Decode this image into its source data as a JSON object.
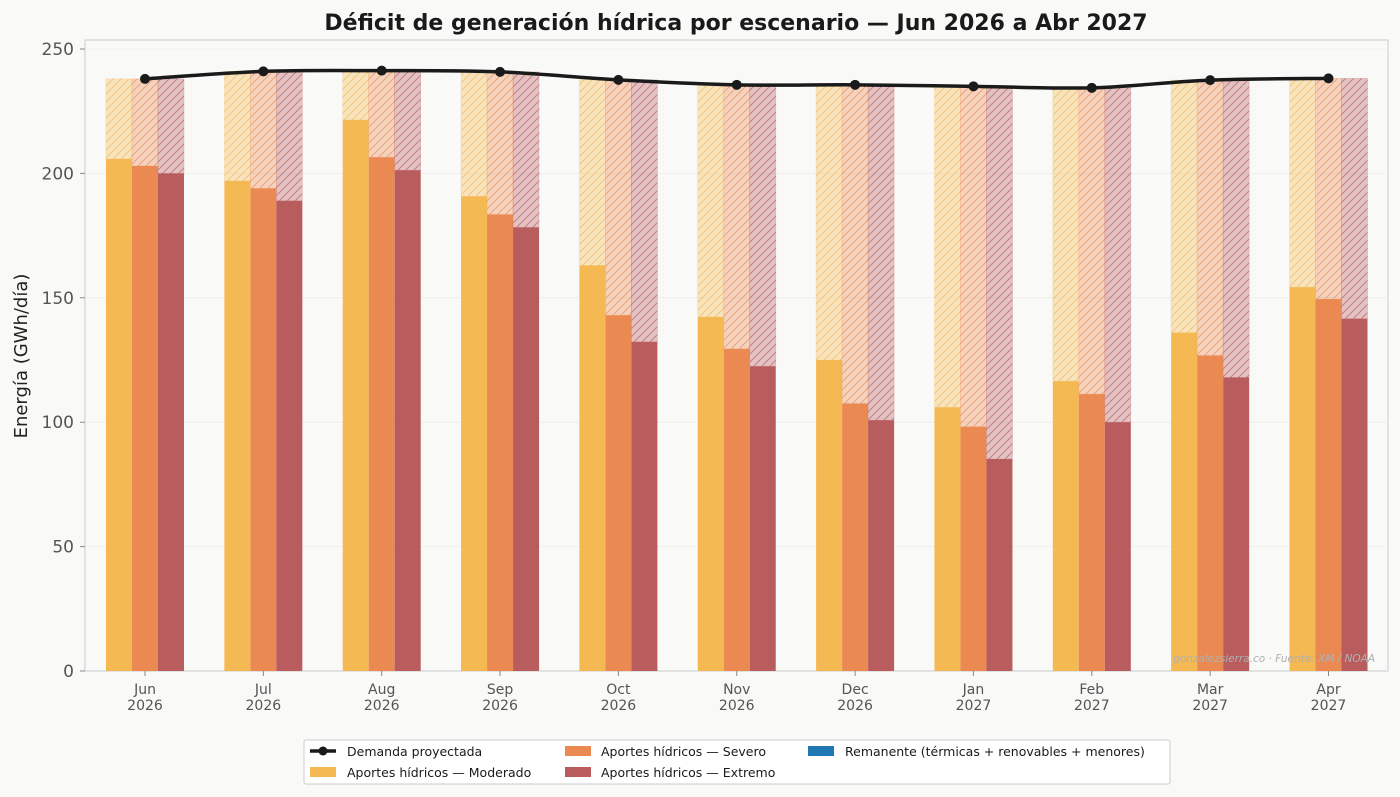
{
  "chart_data": {
    "type": "bar",
    "title": "Déficit de generación hídrica por escenario — Jun 2026 a Abr 2027",
    "xlabel": "",
    "ylabel": "Energía (GWh/día)",
    "ylim": [
      0,
      255
    ],
    "yticks": [
      0,
      50,
      100,
      150,
      200,
      250
    ],
    "grid": true,
    "legend_position": "bottom-center",
    "categories": [
      {
        "month": "Jun",
        "year": "2026"
      },
      {
        "month": "Jul",
        "year": "2026"
      },
      {
        "month": "Aug",
        "year": "2026"
      },
      {
        "month": "Sep",
        "year": "2026"
      },
      {
        "month": "Oct",
        "year": "2026"
      },
      {
        "month": "Nov",
        "year": "2026"
      },
      {
        "month": "Dec",
        "year": "2026"
      },
      {
        "month": "Jan",
        "year": "2027"
      },
      {
        "month": "Feb",
        "year": "2027"
      },
      {
        "month": "Mar",
        "year": "2027"
      },
      {
        "month": "Apr",
        "year": "2027"
      }
    ],
    "demand": {
      "name": "Demanda proyectada",
      "color": "#1a1a1a",
      "values": [
        238,
        241,
        241.3,
        240.8,
        237.6,
        235.6,
        235.6,
        235.0,
        234.4,
        237.5,
        238.2
      ]
    },
    "series": [
      {
        "name": "Aportes hídricos — Moderado",
        "color": "#f4b953",
        "values": [
          205.8,
          197,
          221.5,
          190.8,
          163,
          142.3,
          125,
          106,
          116.5,
          136,
          154.3
        ]
      },
      {
        "name": "Aportes hídricos — Severo",
        "color": "#ea8a52",
        "values": [
          203,
          194,
          206.5,
          183.5,
          143,
          129.5,
          107.5,
          98.2,
          111.3,
          126.8,
          149.5
        ]
      },
      {
        "name": "Aportes hídricos — Extremo",
        "color": "#b85c5e",
        "values": [
          200,
          189,
          201.3,
          178.3,
          132.3,
          122.5,
          100.8,
          85.2,
          100,
          118,
          141.6
        ]
      }
    ],
    "remanente": {
      "name": "Remanente (térmicas + renovables + menores)",
      "color": "#1f77b4"
    },
    "annotations": [
      "gonzalezsierra.co · Fuente: XM / NOAA"
    ]
  }
}
